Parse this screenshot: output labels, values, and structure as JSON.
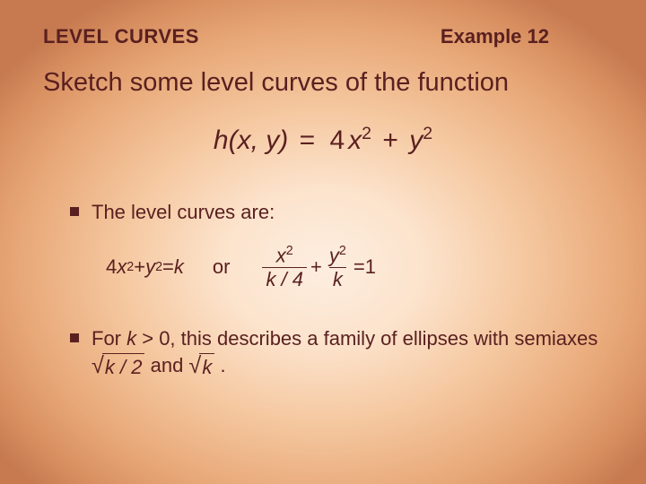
{
  "header": {
    "section": "LEVEL CURVES",
    "example": "Example 12"
  },
  "main_text": "Sketch some level curves of the function",
  "formula": {
    "lhs_fn": "h",
    "lhs_args": "(x, y)",
    "eq": " = ",
    "term1_coef": "4",
    "term1_var": "x",
    "plus": " + ",
    "term2_var": "y",
    "exp": "2"
  },
  "bullet1": "The level curves are:",
  "math": {
    "lhs_coef": "4",
    "lhs_var1": "x",
    "lhs_plus": " + ",
    "lhs_var2": "y",
    "lhs_eq": " = ",
    "lhs_k": "k",
    "or": "or",
    "frac1_num_var": "x",
    "frac1_den": "k / 4",
    "frac_plus": " + ",
    "frac2_num_var": "y",
    "frac2_den": "k",
    "rhs_eq": " = ",
    "rhs_val": "1",
    "exp": "2"
  },
  "bullet2": {
    "pre": "For ",
    "k": "k",
    "cond": " > 0, this describes a family of ellipses with semiaxes ",
    "sqrt1": "k / 2",
    "and": " and ",
    "sqrt2": "k",
    "period": " ."
  },
  "colors": {
    "text": "#5a2020"
  }
}
